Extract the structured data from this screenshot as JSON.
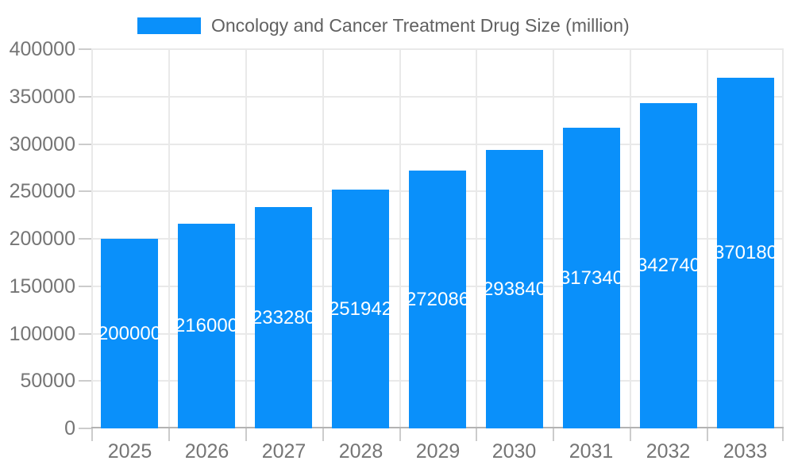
{
  "chart_data": {
    "type": "bar",
    "title": "Oncology and Cancer Treatment Drug Size (million)",
    "legend": {
      "position": "top",
      "label": "Oncology and Cancer Treatment Drug Size (million)"
    },
    "categories": [
      "2025",
      "2026",
      "2027",
      "2028",
      "2029",
      "2030",
      "2031",
      "2032",
      "2033"
    ],
    "series": [
      {
        "name": "Oncology and Cancer Treatment Drug Size (million)",
        "values": [
          200000,
          216000,
          233280,
          251942,
          272086,
          293840,
          317340,
          342740,
          370180
        ]
      }
    ],
    "xlabel": "",
    "ylabel": "",
    "ylim": [
      0,
      400000
    ],
    "ytick_step": 50000,
    "ytick_labels": [
      "0",
      "50000",
      "100000",
      "150000",
      "200000",
      "250000",
      "300000",
      "350000",
      "400000"
    ],
    "grid": true,
    "value_labels": "inside-center",
    "colors": {
      "bar": "#0a90fa",
      "value_label_text": "#ffffff",
      "axis_text": "#757575",
      "legend_text": "#616161",
      "gridline": "#e9e9e9",
      "baseline": "#b3b3b3",
      "tick": "#cccccc",
      "background": "#ffffff"
    }
  }
}
